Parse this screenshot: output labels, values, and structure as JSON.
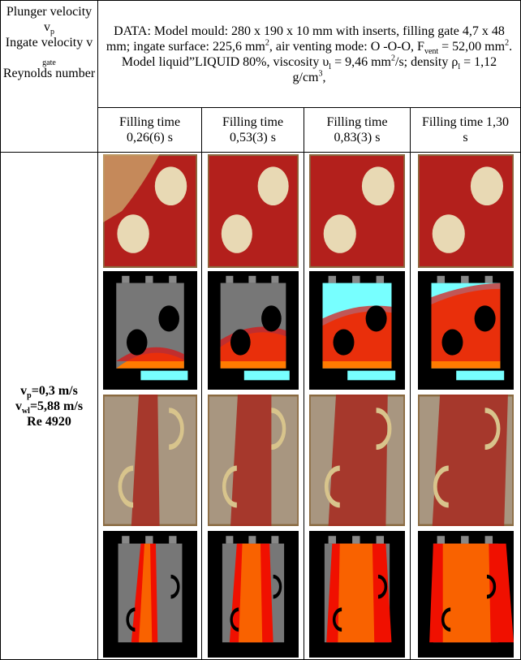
{
  "left_header": {
    "line1": "Plunger velocity v",
    "sub1": "p",
    "line2": "Ingate velocity v",
    "sub2": "gate",
    "line3": "Reynolds number"
  },
  "description": [
    "DATA: Model mould: 280 x 190 x 10 mm with inserts, filling gate 4,7 x 48 mm; ingate surface: 225,6 mm",
    "2",
    ", air venting mode: O -O-O, F",
    "vent",
    " = 52,00 mm",
    "2",
    ". Model liquid”LIQUID 80%, viscosity υ",
    "l",
    " = 9,46 mm",
    "2",
    "/s; density ρ",
    "l",
    " = 1,12 g/cm",
    "3",
    ","
  ],
  "filling_times": [
    "Filling time 0,26(6) s",
    "Filling time 0,53(3) s",
    "Filling time 0,83(3) s",
    "Filling time 1,30 s"
  ],
  "row_label": [
    "v",
    "p",
    "=0,3 m/s",
    "v",
    "wl",
    "=5,88 m/s",
    "Re 4920"
  ]
}
